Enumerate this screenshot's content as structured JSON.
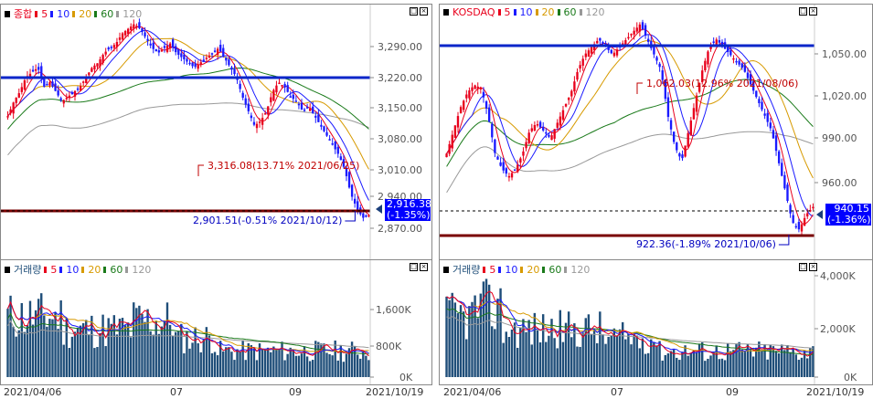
{
  "charts": [
    {
      "legend": {
        "name": "종합",
        "ma5": "5",
        "ma10": "10",
        "ma20": "20",
        "ma60": "60",
        "ma120": "120"
      },
      "high_annotation": "3,316.08(13.71% 2021/06/25)",
      "low_annotation": "2,901.51(-0.51% 2021/10/12)",
      "current": "2,916.38",
      "current_pct": "(-1.35%)",
      "yticks": [
        "3,290.00",
        "3,220.00",
        "3,150.00",
        "3,080.00",
        "3,010.00",
        "2,940.00",
        "2,870.00"
      ],
      "volume_legend": {
        "name": "거래량",
        "ma5": "5",
        "ma10": "10",
        "ma20": "20",
        "ma60": "60",
        "ma120": "120"
      },
      "vticks": [
        "1,600K",
        "800K",
        "0K"
      ],
      "dates": [
        "2021/04/06",
        "07",
        "09",
        "2021/10/19"
      ]
    },
    {
      "legend": {
        "name": "KOSDAQ",
        "ma5": "5",
        "ma10": "10",
        "ma20": "20",
        "ma60": "60",
        "ma120": "120"
      },
      "high_annotation": "1,062.03(12.96% 2021/08/06)",
      "low_annotation": "922.36(-1.89% 2021/10/06)",
      "current": "940.15",
      "current_pct": "(-1.36%)",
      "yticks": [
        "1,050.00",
        "1,020.00",
        "990.00",
        "960.00"
      ],
      "volume_legend": {
        "name": "거래량",
        "ma5": "5",
        "ma10": "10",
        "ma20": "20",
        "ma60": "60",
        "ma120": "120"
      },
      "vticks": [
        "4,000K",
        "2,000K",
        "0K"
      ],
      "dates": [
        "2021/04/06",
        "07",
        "09",
        "2021/10/19"
      ]
    }
  ],
  "colors": {
    "up": "#e8001c",
    "down": "#1a1aff",
    "ma5": "#e8001c",
    "ma10": "#1a1aff",
    "ma20": "#d79a00",
    "ma60": "#1a7a1a",
    "ma120": "#999999",
    "hline": "#0a26c9",
    "lowline": "#7a0000",
    "vol": "#1f4e79"
  },
  "chart_data": [
    {
      "type": "candlestick",
      "title": "종합",
      "x_range": [
        "2021/04/06",
        "2021/10/19"
      ],
      "ylim": [
        2870,
        3316
      ],
      "high": 3316.08,
      "low": 2901.51,
      "last": 2916.38,
      "close_approx": [
        3120,
        3150,
        3170,
        3200,
        3210,
        3220,
        3180,
        3190,
        3170,
        3150,
        3160,
        3170,
        3180,
        3200,
        3220,
        3230,
        3250,
        3260,
        3270,
        3290,
        3300,
        3310,
        3300,
        3280,
        3260,
        3250,
        3260,
        3270,
        3250,
        3240,
        3230,
        3220,
        3230,
        3240,
        3250,
        3260,
        3240,
        3220,
        3200,
        3160,
        3130,
        3100,
        3110,
        3130,
        3170,
        3190,
        3180,
        3160,
        3150,
        3130,
        3140,
        3120,
        3100,
        3080,
        3060,
        3040,
        3010,
        2960,
        2930,
        2910,
        2916
      ]
    },
    {
      "type": "candlestick",
      "title": "KOSDAQ",
      "x_range": [
        "2021/04/06",
        "2021/10/19"
      ],
      "ylim": [
        920,
        1062
      ],
      "high": 1062.03,
      "low": 922.36,
      "last": 940.15,
      "close_approx": [
        975,
        990,
        1005,
        1015,
        1020,
        1018,
        1000,
        975,
        965,
        960,
        965,
        975,
        990,
        995,
        990,
        985,
        995,
        1005,
        1015,
        1030,
        1040,
        1045,
        1050,
        1045,
        1040,
        1045,
        1050,
        1055,
        1060,
        1050,
        1040,
        1030,
        1000,
        980,
        970,
        990,
        1010,
        1030,
        1045,
        1050,
        1045,
        1040,
        1035,
        1030,
        1020,
        1010,
        1000,
        990,
        970,
        950,
        930,
        925,
        935,
        940
      ]
    }
  ]
}
